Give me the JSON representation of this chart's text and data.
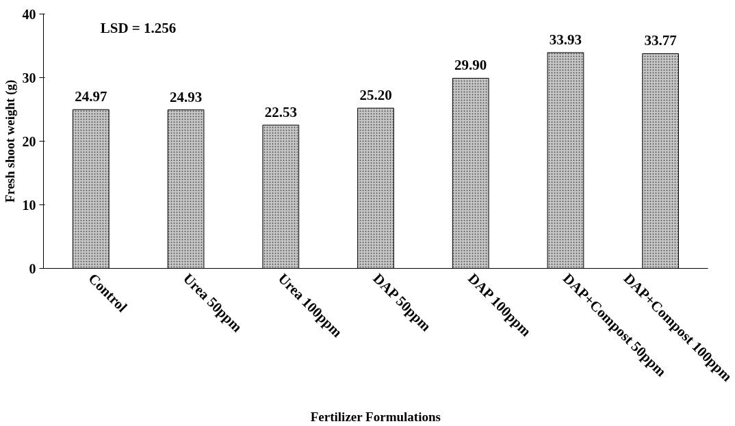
{
  "chart_data": {
    "type": "bar",
    "xlabel": "Fertilizer Formulations",
    "ylabel": "Fresh shoot weight (g)",
    "categories": [
      "Control",
      "Urea 50ppm",
      "Urea 100ppm",
      "DAP 50ppm",
      "DAP 100ppm",
      "DAP+Compost 50ppm",
      "DAP+Compost 100ppm"
    ],
    "values": [
      24.97,
      24.93,
      22.53,
      25.2,
      29.9,
      33.93,
      33.77
    ],
    "value_labels": [
      "24.97",
      "24.93",
      "22.53",
      "25.20",
      "29.90",
      "33.93",
      "33.77"
    ],
    "color": "#c8c8c8",
    "ylim": [
      0,
      40
    ],
    "yticks": [
      0,
      10,
      20,
      30,
      40
    ],
    "grid": false,
    "annotations": [
      "LSD = 1.256"
    ]
  }
}
